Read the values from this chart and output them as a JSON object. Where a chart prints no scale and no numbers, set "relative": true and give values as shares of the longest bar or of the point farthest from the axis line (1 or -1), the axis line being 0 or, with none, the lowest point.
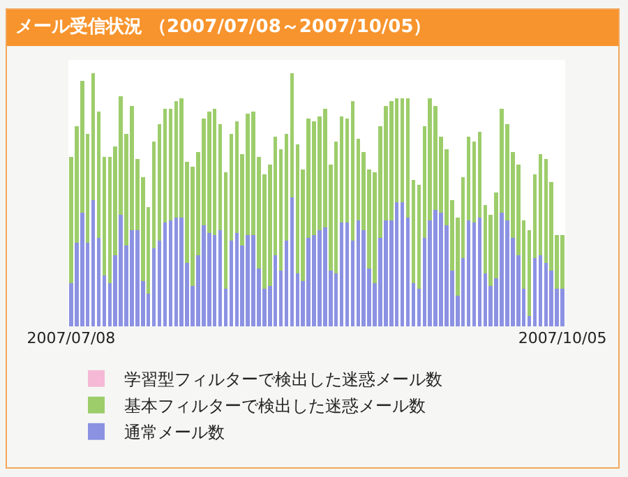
{
  "chart_data": {
    "type": "bar",
    "title": "メール受信状況 （2007/07/08～2007/10/05）",
    "stacked": true,
    "relative": true,
    "legend": "bottom",
    "tick_labels": "x",
    "categories": [
      "2007/07/08",
      null,
      null,
      null,
      null,
      null,
      null,
      null,
      null,
      null,
      null,
      null,
      null,
      null,
      null,
      null,
      null,
      null,
      null,
      null,
      null,
      null,
      null,
      null,
      null,
      null,
      null,
      null,
      null,
      null,
      null,
      null,
      null,
      null,
      null,
      null,
      null,
      null,
      null,
      null,
      null,
      null,
      null,
      null,
      null,
      null,
      null,
      null,
      null,
      null,
      null,
      null,
      null,
      null,
      null,
      null,
      null,
      null,
      null,
      null,
      null,
      null,
      null,
      null,
      null,
      null,
      null,
      null,
      null,
      null,
      null,
      null,
      null,
      null,
      null,
      null,
      null,
      null,
      null,
      null,
      null,
      null,
      null,
      null,
      null,
      null,
      null,
      null,
      null,
      "2007/10/05"
    ],
    "series": [
      {
        "name": "通常メール数",
        "color": "#8c92e2",
        "values": [
          0.17,
          0.33,
          0.45,
          0.33,
          0.5,
          0.35,
          0.2,
          0.17,
          0.28,
          0.44,
          0.32,
          0.38,
          0.38,
          0.18,
          0.13,
          0.31,
          0.34,
          0.41,
          0.42,
          0.43,
          0.43,
          0.25,
          0.16,
          0.28,
          0.4,
          0.37,
          0.36,
          0.38,
          0.15,
          0.34,
          0.37,
          0.32,
          0.36,
          0.36,
          0.23,
          0.15,
          0.16,
          0.28,
          0.22,
          0.34,
          0.51,
          0.21,
          0.18,
          0.35,
          0.36,
          0.38,
          0.39,
          0.22,
          0.21,
          0.41,
          0.41,
          0.34,
          0.42,
          0.38,
          0.23,
          0.17,
          0.35,
          0.42,
          0.42,
          0.49,
          0.49,
          0.43,
          0.17,
          0.15,
          0.35,
          0.42,
          0.46,
          0.45,
          0.4,
          0.22,
          0.12,
          0.27,
          0.42,
          0.41,
          0.43,
          0.21,
          0.16,
          0.19,
          0.45,
          0.42,
          0.35,
          0.28,
          0.15,
          0.04,
          0.27,
          0.28,
          0.25,
          0.22,
          0.15,
          0.15
        ]
      },
      {
        "name": "基本フィルターで検出した迷惑メール数",
        "color": "#9dcd6b",
        "values": [
          0.5,
          0.46,
          0.52,
          0.43,
          0.5,
          0.5,
          0.47,
          0.5,
          0.43,
          0.47,
          0.44,
          0.49,
          0.28,
          0.41,
          0.34,
          0.42,
          0.46,
          0.45,
          0.44,
          0.46,
          0.47,
          0.4,
          0.47,
          0.41,
          0.42,
          0.48,
          0.5,
          0.42,
          0.46,
          0.42,
          0.44,
          0.36,
          0.48,
          0.49,
          0.44,
          0.45,
          0.48,
          0.47,
          0.48,
          0.42,
          0.49,
          0.51,
          0.44,
          0.47,
          0.45,
          0.45,
          0.47,
          0.42,
          0.52,
          0.42,
          0.41,
          0.55,
          0.32,
          0.31,
          0.39,
          0.44,
          0.44,
          0.45,
          0.47,
          0.41,
          0.41,
          0.47,
          0.41,
          0.41,
          0.44,
          0.48,
          0.41,
          0.3,
          0.3,
          0.28,
          0.31,
          0.32,
          0.33,
          0.32,
          0.34,
          0.27,
          0.28,
          0.34,
          0.41,
          0.38,
          0.34,
          0.36,
          0.27,
          0.34,
          0.33,
          0.4,
          0.41,
          0.35,
          0.21,
          0.21
        ]
      },
      {
        "name": "学習型フィルターで検出した迷惑メール数",
        "color": "#f5b9d6",
        "values": [
          0,
          0,
          0,
          0,
          0,
          0,
          0,
          0,
          0,
          0,
          0,
          0,
          0,
          0,
          0,
          0,
          0,
          0,
          0,
          0,
          0,
          0,
          0,
          0,
          0,
          0,
          0,
          0,
          0,
          0,
          0,
          0,
          0,
          0,
          0,
          0,
          0,
          0,
          0,
          0,
          0,
          0,
          0,
          0,
          0,
          0,
          0,
          0,
          0,
          0,
          0,
          0,
          0,
          0,
          0,
          0,
          0,
          0,
          0,
          0,
          0,
          0,
          0,
          0,
          0,
          0,
          0,
          0,
          0,
          0,
          0,
          0,
          0,
          0,
          0,
          0,
          0,
          0,
          0,
          0,
          0,
          0,
          0,
          0,
          0,
          0,
          0,
          0,
          0,
          0
        ]
      }
    ]
  }
}
